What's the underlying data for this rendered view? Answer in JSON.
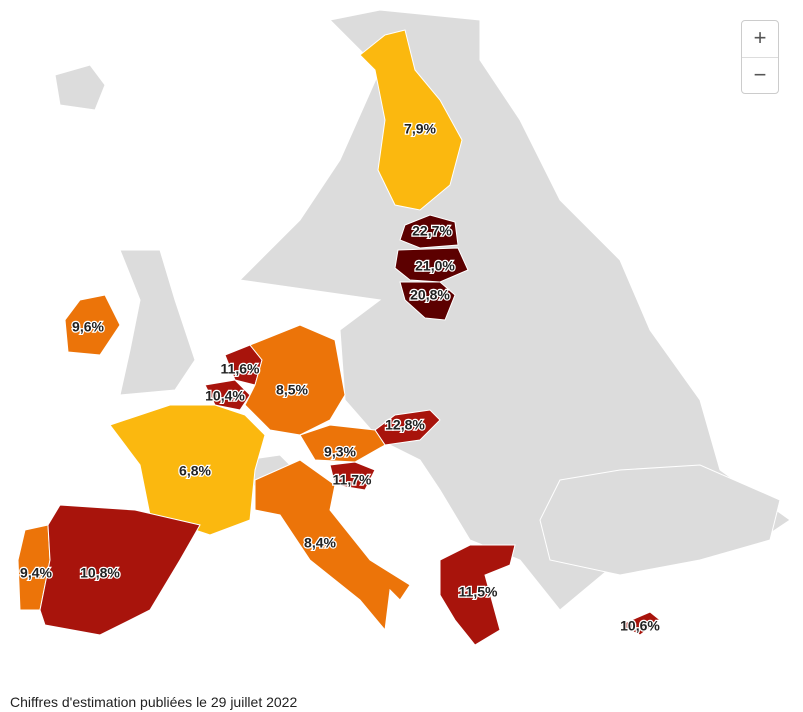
{
  "map": {
    "zoom_in": "+",
    "zoom_out": "−",
    "footnote": "Chiffres d'estimation publiées le 29 juillet 2022",
    "regions": [
      {
        "label": "7,9%",
        "value": 7.9,
        "color": "#fbb80f"
      },
      {
        "label": "22,7%",
        "value": 22.7,
        "color": "#5c0000"
      },
      {
        "label": "21,0%",
        "value": 21.0,
        "color": "#5c0000"
      },
      {
        "label": "20,8%",
        "value": 20.8,
        "color": "#5c0000"
      },
      {
        "label": "9,6%",
        "value": 9.6,
        "color": "#ec7409"
      },
      {
        "label": "11,6%",
        "value": 11.6,
        "color": "#a8140c"
      },
      {
        "label": "10,4%",
        "value": 10.4,
        "color": "#a8140c"
      },
      {
        "label": "8,5%",
        "value": 8.5,
        "color": "#ec7409"
      },
      {
        "label": "12,8%",
        "value": 12.8,
        "color": "#a8140c"
      },
      {
        "label": "9,3%",
        "value": 9.3,
        "color": "#ec7409"
      },
      {
        "label": "6,8%",
        "value": 6.8,
        "color": "#fbb80f"
      },
      {
        "label": "11,7%",
        "value": 11.7,
        "color": "#a8140c"
      },
      {
        "label": "8,4%",
        "value": 8.4,
        "color": "#ec7409"
      },
      {
        "label": "9,4%",
        "value": 9.4,
        "color": "#ec7409"
      },
      {
        "label": "10,8%",
        "value": 10.8,
        "color": "#a8140c"
      },
      {
        "label": "11,5%",
        "value": 11.5,
        "color": "#a8140c"
      },
      {
        "label": "10,6%",
        "value": 10.6,
        "color": "#a8140c"
      }
    ]
  }
}
